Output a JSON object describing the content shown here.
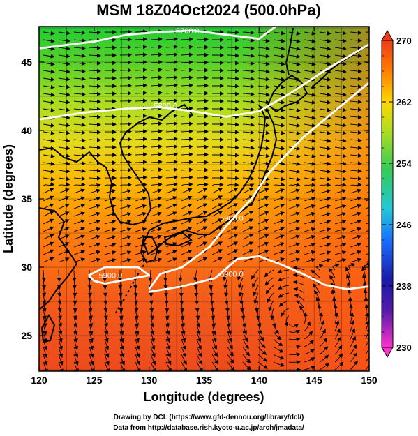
{
  "title": "MSM 18Z04Oct2024 (500.0hPa)",
  "xlabel": "Longitude (degrees)",
  "ylabel": "Latitude  (degrees)",
  "credits": {
    "line1": "Drawing by DCL (https://www.gfd-dennou.org/library/dcl/)",
    "line2": "Data from http://database.rish.kyoto-u.ac.jp/arch/jmadata/"
  },
  "chart_data": {
    "type": "heatmap",
    "xlim": [
      120,
      150
    ],
    "ylim": [
      22.4,
      47.6
    ],
    "xticks": [
      120,
      125,
      130,
      135,
      140,
      145,
      150
    ],
    "yticks": [
      25,
      30,
      35,
      40,
      45
    ],
    "colorbar": {
      "min": 230,
      "max": 270,
      "ticks": [
        230,
        238,
        246,
        254,
        262,
        270
      ],
      "colors": [
        "#ff33cc",
        "#1a1aaa",
        "#1a6fff",
        "#22c8d8",
        "#33cc55",
        "#aadd22",
        "#ffd700",
        "#ff7f00",
        "#ee3a1a"
      ]
    },
    "contours": [
      {
        "label": "5700.0",
        "points": [
          [
            120,
            46.0
          ],
          [
            125,
            46.5
          ],
          [
            128,
            47.0
          ],
          [
            131,
            47.2
          ],
          [
            134,
            47.3
          ],
          [
            137,
            47.0
          ],
          [
            140,
            46.7
          ],
          [
            141.5,
            47.6
          ]
        ]
      },
      {
        "label": "5800.0",
        "points": [
          [
            120,
            40.8
          ],
          [
            124,
            41.3
          ],
          [
            128,
            41.6
          ],
          [
            131,
            41.7
          ],
          [
            134,
            41.4
          ],
          [
            137,
            41.0
          ],
          [
            140,
            41.4
          ],
          [
            143,
            42.8
          ],
          [
            146,
            44.4
          ],
          [
            150,
            46.3
          ]
        ]
      },
      {
        "label": "5900.0",
        "points": [
          [
            124.5,
            29.4
          ],
          [
            126,
            30.0
          ],
          [
            129,
            30.0
          ],
          [
            130,
            29.4
          ],
          [
            126,
            28.8
          ],
          [
            125,
            29.0
          ],
          [
            124.5,
            29.4
          ]
        ]
      },
      {
        "label": "5900.0",
        "points": [
          [
            130,
            28.4
          ],
          [
            131,
            29.5
          ],
          [
            133,
            30.0
          ],
          [
            135.5,
            31.5
          ],
          [
            137,
            33.0
          ],
          [
            139.3,
            35.0
          ],
          [
            141,
            37.0
          ],
          [
            144,
            39.5
          ],
          [
            147,
            41.5
          ],
          [
            150,
            43.5
          ]
        ]
      },
      {
        "label": "5900.0",
        "points": [
          [
            130,
            28.2
          ],
          [
            133,
            28.6
          ],
          [
            136,
            29.2
          ],
          [
            138,
            30.6
          ],
          [
            140,
            30.8
          ],
          [
            142,
            30.2
          ],
          [
            144,
            29.5
          ],
          [
            146,
            28.7
          ],
          [
            148,
            28.4
          ],
          [
            150,
            28.6
          ]
        ]
      }
    ],
    "contour_label_positions": [
      [
        133.5,
        47.1
      ],
      [
        131.5,
        41.6
      ],
      [
        126.5,
        29.2
      ],
      [
        137.5,
        33.4
      ],
      [
        137.5,
        29.3
      ]
    ],
    "annotations": [
      "5700.0",
      "5800.0",
      "5900.0",
      "5900.0",
      "5900.0"
    ]
  }
}
